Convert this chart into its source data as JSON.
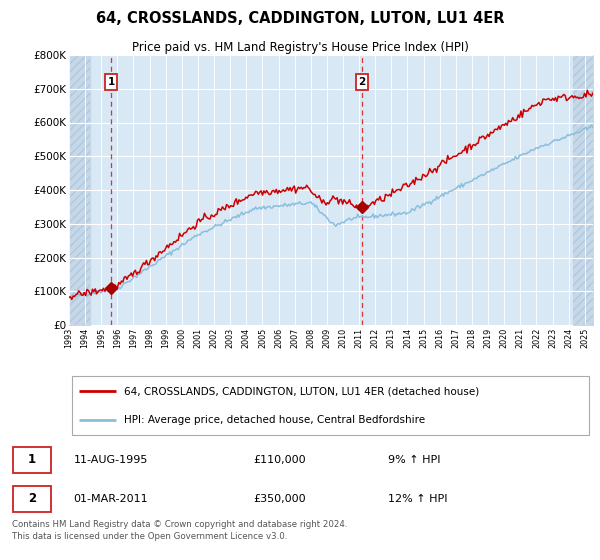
{
  "title": "64, CROSSLANDS, CADDINGTON, LUTON, LU1 4ER",
  "subtitle": "Price paid vs. HM Land Registry's House Price Index (HPI)",
  "legend_line1": "64, CROSSLANDS, CADDINGTON, LUTON, LU1 4ER (detached house)",
  "legend_line2": "HPI: Average price, detached house, Central Bedfordshire",
  "transaction1_date": "11-AUG-1995",
  "transaction1_price": "£110,000",
  "transaction1_hpi": "9% ↑ HPI",
  "transaction1_year": 1995.62,
  "transaction1_value": 110000,
  "transaction2_date": "01-MAR-2011",
  "transaction2_price": "£350,000",
  "transaction2_hpi": "12% ↑ HPI",
  "transaction2_year": 2011.17,
  "transaction2_value": 350000,
  "hpi_color": "#8BBEDD",
  "price_color": "#CC0000",
  "marker_color": "#AA0000",
  "bg_color": "#D8E8F4",
  "grid_color": "#FFFFFF",
  "ylim": [
    0,
    800000
  ],
  "yticks": [
    0,
    100000,
    200000,
    300000,
    400000,
    500000,
    600000,
    700000,
    800000
  ],
  "xmin": 1993,
  "xmax": 2025.5,
  "footnote": "Contains HM Land Registry data © Crown copyright and database right 2024.\nThis data is licensed under the Open Government Licence v3.0.",
  "title_fontsize": 10.5,
  "subtitle_fontsize": 8.5
}
